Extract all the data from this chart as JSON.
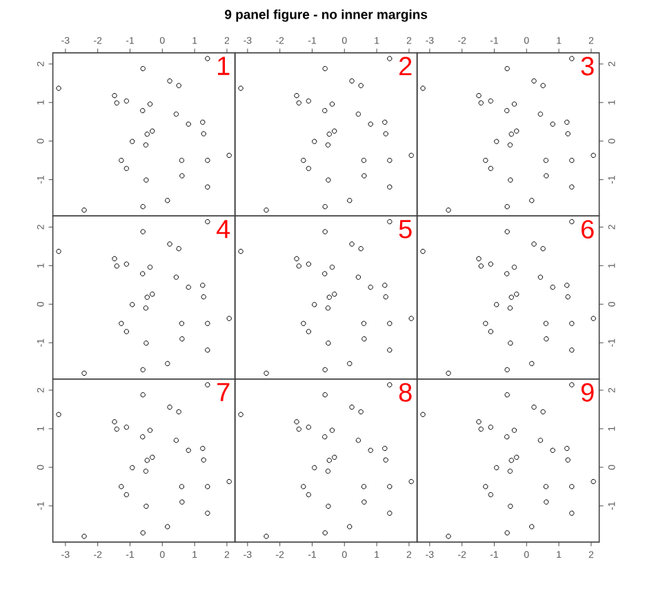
{
  "chart_data": [
    {
      "type": "scatter",
      "x": [
        1.4,
        -0.6,
        0.23,
        0.51,
        -3.21,
        -1.48,
        -1.41,
        -1.11,
        -0.38,
        -0.61,
        0.43,
        1.25,
        0.81,
        -0.31,
        -0.47,
        1.28,
        -0.93,
        -0.51,
        2.07,
        -1.27,
        0.6,
        1.4,
        -1.11,
        0.61,
        -0.5,
        1.4,
        0.16,
        -0.6,
        -2.42
      ],
      "values": [
        2.14,
        1.88,
        1.56,
        1.44,
        1.37,
        1.18,
        0.99,
        1.04,
        0.96,
        0.79,
        0.7,
        0.49,
        0.44,
        0.26,
        0.18,
        0.19,
        -0.01,
        -0.1,
        -0.37,
        -0.5,
        -0.5,
        -0.5,
        -0.71,
        -0.9,
        -1.01,
        -1.19,
        -1.54,
        -1.7,
        -1.79
      ],
      "color": "#000000",
      "marker": "circle",
      "xlim": [
        -3.39,
        2.25
      ],
      "ylim": [
        -1.94,
        2.29
      ],
      "xticks": [
        -3,
        -2,
        -1,
        0,
        1,
        2
      ],
      "yticks": [
        -1,
        0,
        1,
        2
      ],
      "grid": false,
      "legend": false,
      "annotations": [
        "1"
      ]
    },
    {
      "type": "scatter",
      "title": "9 panel figure - no inner margins",
      "x": [
        1.4,
        -0.6,
        0.23,
        0.51,
        -3.21,
        -1.48,
        -1.41,
        -1.11,
        -0.38,
        -0.61,
        0.43,
        1.25,
        0.81,
        -0.31,
        -0.47,
        1.28,
        -0.93,
        -0.51,
        2.07,
        -1.27,
        0.6,
        1.4,
        -1.11,
        0.61,
        -0.5,
        1.4,
        0.16,
        -0.6,
        -2.42
      ],
      "values": [
        2.14,
        1.88,
        1.56,
        1.44,
        1.37,
        1.18,
        0.99,
        1.04,
        0.96,
        0.79,
        0.7,
        0.49,
        0.44,
        0.26,
        0.18,
        0.19,
        -0.01,
        -0.1,
        -0.37,
        -0.5,
        -0.5,
        -0.5,
        -0.71,
        -0.9,
        -1.01,
        -1.19,
        -1.54,
        -1.7,
        -1.79
      ],
      "color": "#000000",
      "marker": "circle",
      "xlim": [
        -3.39,
        2.25
      ],
      "ylim": [
        -1.94,
        2.29
      ],
      "xticks": [
        -3,
        -2,
        -1,
        0,
        1,
        2
      ],
      "grid": false,
      "legend": false,
      "tick_labels": "x",
      "annotations": [
        "2"
      ]
    },
    {
      "type": "scatter",
      "x": [
        1.4,
        -0.6,
        0.23,
        0.51,
        -3.21,
        -1.48,
        -1.41,
        -1.11,
        -0.38,
        -0.61,
        0.43,
        1.25,
        0.81,
        -0.31,
        -0.47,
        1.28,
        -0.93,
        -0.51,
        2.07,
        -1.27,
        0.6,
        1.4,
        -1.11,
        0.61,
        -0.5,
        1.4,
        0.16,
        -0.6,
        -2.42
      ],
      "values": [
        2.14,
        1.88,
        1.56,
        1.44,
        1.37,
        1.18,
        0.99,
        1.04,
        0.96,
        0.79,
        0.7,
        0.49,
        0.44,
        0.26,
        0.18,
        0.19,
        -0.01,
        -0.1,
        -0.37,
        -0.5,
        -0.5,
        -0.5,
        -0.71,
        -0.9,
        -1.01,
        -1.19,
        -1.54,
        -1.7,
        -1.79
      ],
      "color": "#000000",
      "marker": "circle",
      "xlim": [
        -3.39,
        2.25
      ],
      "ylim": [
        -1.94,
        2.29
      ],
      "xticks": [
        -3,
        -2,
        -1,
        0,
        1,
        2
      ],
      "yticks": [
        -1,
        0,
        1,
        2
      ],
      "grid": false,
      "legend": false,
      "annotations": [
        "3"
      ]
    },
    {
      "type": "scatter",
      "x": [
        1.4,
        -0.6,
        0.23,
        0.51,
        -3.21,
        -1.48,
        -1.41,
        -1.11,
        -0.38,
        -0.61,
        0.43,
        1.25,
        0.81,
        -0.31,
        -0.47,
        1.28,
        -0.93,
        -0.51,
        2.07,
        -1.27,
        0.6,
        1.4,
        -1.11,
        0.61,
        -0.5,
        1.4,
        0.16,
        -0.6,
        -2.42
      ],
      "values": [
        2.14,
        1.88,
        1.56,
        1.44,
        1.37,
        1.18,
        0.99,
        1.04,
        0.96,
        0.79,
        0.7,
        0.49,
        0.44,
        0.26,
        0.18,
        0.19,
        -0.01,
        -0.1,
        -0.37,
        -0.5,
        -0.5,
        -0.5,
        -0.71,
        -0.9,
        -1.01,
        -1.19,
        -1.54,
        -1.7,
        -1.79
      ],
      "color": "#000000",
      "marker": "circle",
      "xlim": [
        -3.39,
        2.25
      ],
      "ylim": [
        -1.94,
        2.29
      ],
      "yticks": [
        -1,
        0,
        1,
        2
      ],
      "grid": false,
      "legend": false,
      "tick_labels": "y",
      "annotations": [
        "4"
      ]
    },
    {
      "type": "scatter",
      "x": [
        1.4,
        -0.6,
        0.23,
        0.51,
        -3.21,
        -1.48,
        -1.41,
        -1.11,
        -0.38,
        -0.61,
        0.43,
        1.25,
        0.81,
        -0.31,
        -0.47,
        1.28,
        -0.93,
        -0.51,
        2.07,
        -1.27,
        0.6,
        1.4,
        -1.11,
        0.61,
        -0.5,
        1.4,
        0.16,
        -0.6,
        -2.42
      ],
      "values": [
        2.14,
        1.88,
        1.56,
        1.44,
        1.37,
        1.18,
        0.99,
        1.04,
        0.96,
        0.79,
        0.7,
        0.49,
        0.44,
        0.26,
        0.18,
        0.19,
        -0.01,
        -0.1,
        -0.37,
        -0.5,
        -0.5,
        -0.5,
        -0.71,
        -0.9,
        -1.01,
        -1.19,
        -1.54,
        -1.7,
        -1.79
      ],
      "color": "#000000",
      "marker": "circle",
      "xlim": [
        -3.39,
        2.25
      ],
      "ylim": [
        -1.94,
        2.29
      ],
      "grid": false,
      "legend": false,
      "tick_labels": false,
      "annotations": [
        "5"
      ]
    },
    {
      "type": "scatter",
      "x": [
        1.4,
        -0.6,
        0.23,
        0.51,
        -3.21,
        -1.48,
        -1.41,
        -1.11,
        -0.38,
        -0.61,
        0.43,
        1.25,
        0.81,
        -0.31,
        -0.47,
        1.28,
        -0.93,
        -0.51,
        2.07,
        -1.27,
        0.6,
        1.4,
        -1.11,
        0.61,
        -0.5,
        1.4,
        0.16,
        -0.6,
        -2.42
      ],
      "values": [
        2.14,
        1.88,
        1.56,
        1.44,
        1.37,
        1.18,
        0.99,
        1.04,
        0.96,
        0.79,
        0.7,
        0.49,
        0.44,
        0.26,
        0.18,
        0.19,
        -0.01,
        -0.1,
        -0.37,
        -0.5,
        -0.5,
        -0.5,
        -0.71,
        -0.9,
        -1.01,
        -1.19,
        -1.54,
        -1.7,
        -1.79
      ],
      "color": "#000000",
      "marker": "circle",
      "xlim": [
        -3.39,
        2.25
      ],
      "ylim": [
        -1.94,
        2.29
      ],
      "yticks": [
        -1,
        0,
        1,
        2
      ],
      "grid": false,
      "legend": false,
      "tick_labels": "y",
      "annotations": [
        "6"
      ]
    },
    {
      "type": "scatter",
      "x": [
        1.4,
        -0.6,
        0.23,
        0.51,
        -3.21,
        -1.48,
        -1.41,
        -1.11,
        -0.38,
        -0.61,
        0.43,
        1.25,
        0.81,
        -0.31,
        -0.47,
        1.28,
        -0.93,
        -0.51,
        2.07,
        -1.27,
        0.6,
        1.4,
        -1.11,
        0.61,
        -0.5,
        1.4,
        0.16,
        -0.6,
        -2.42
      ],
      "values": [
        2.14,
        1.88,
        1.56,
        1.44,
        1.37,
        1.18,
        0.99,
        1.04,
        0.96,
        0.79,
        0.7,
        0.49,
        0.44,
        0.26,
        0.18,
        0.19,
        -0.01,
        -0.1,
        -0.37,
        -0.5,
        -0.5,
        -0.5,
        -0.71,
        -0.9,
        -1.01,
        -1.19,
        -1.54,
        -1.7,
        -1.79
      ],
      "color": "#000000",
      "marker": "circle",
      "xlim": [
        -3.39,
        2.25
      ],
      "ylim": [
        -1.94,
        2.29
      ],
      "xticks": [
        -3,
        -2,
        -1,
        0,
        1,
        2
      ],
      "yticks": [
        -1,
        0,
        1,
        2
      ],
      "grid": false,
      "legend": false,
      "annotations": [
        "7"
      ]
    },
    {
      "type": "scatter",
      "x": [
        1.4,
        -0.6,
        0.23,
        0.51,
        -3.21,
        -1.48,
        -1.41,
        -1.11,
        -0.38,
        -0.61,
        0.43,
        1.25,
        0.81,
        -0.31,
        -0.47,
        1.28,
        -0.93,
        -0.51,
        2.07,
        -1.27,
        0.6,
        1.4,
        -1.11,
        0.61,
        -0.5,
        1.4,
        0.16,
        -0.6,
        -2.42
      ],
      "values": [
        2.14,
        1.88,
        1.56,
        1.44,
        1.37,
        1.18,
        0.99,
        1.04,
        0.96,
        0.79,
        0.7,
        0.49,
        0.44,
        0.26,
        0.18,
        0.19,
        -0.01,
        -0.1,
        -0.37,
        -0.5,
        -0.5,
        -0.5,
        -0.71,
        -0.9,
        -1.01,
        -1.19,
        -1.54,
        -1.7,
        -1.79
      ],
      "color": "#000000",
      "marker": "circle",
      "xlim": [
        -3.39,
        2.25
      ],
      "ylim": [
        -1.94,
        2.29
      ],
      "xticks": [
        -3,
        -2,
        -1,
        0,
        1,
        2
      ],
      "grid": false,
      "legend": false,
      "tick_labels": "x",
      "annotations": [
        "8"
      ]
    },
    {
      "type": "scatter",
      "x": [
        1.4,
        -0.6,
        0.23,
        0.51,
        -3.21,
        -1.48,
        -1.41,
        -1.11,
        -0.38,
        -0.61,
        0.43,
        1.25,
        0.81,
        -0.31,
        -0.47,
        1.28,
        -0.93,
        -0.51,
        2.07,
        -1.27,
        0.6,
        1.4,
        -1.11,
        0.61,
        -0.5,
        1.4,
        0.16,
        -0.6,
        -2.42
      ],
      "values": [
        2.14,
        1.88,
        1.56,
        1.44,
        1.37,
        1.18,
        0.99,
        1.04,
        0.96,
        0.79,
        0.7,
        0.49,
        0.44,
        0.26,
        0.18,
        0.19,
        -0.01,
        -0.1,
        -0.37,
        -0.5,
        -0.5,
        -0.5,
        -0.71,
        -0.9,
        -1.01,
        -1.19,
        -1.54,
        -1.7,
        -1.79
      ],
      "color": "#000000",
      "marker": "circle",
      "xlim": [
        -3.39,
        2.25
      ],
      "ylim": [
        -1.94,
        2.29
      ],
      "xticks": [
        -3,
        -2,
        -1,
        0,
        1,
        2
      ],
      "yticks": [
        -1,
        0,
        1,
        2
      ],
      "grid": false,
      "legend": false,
      "annotations": [
        "9"
      ]
    }
  ]
}
